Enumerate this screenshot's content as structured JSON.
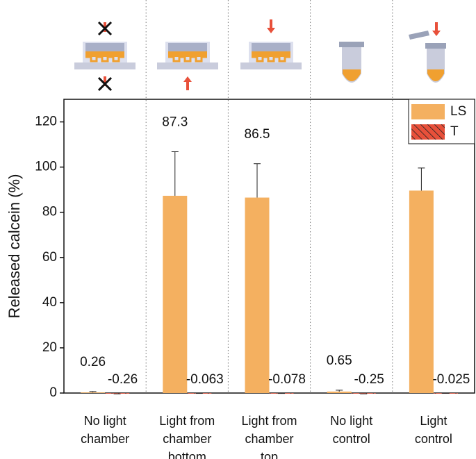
{
  "chart_data": {
    "type": "bar",
    "categories": [
      [
        "No light",
        "chamber"
      ],
      [
        "Light from",
        "chamber",
        "bottom"
      ],
      [
        "Light from",
        "chamber",
        "top"
      ],
      [
        "No light",
        "control"
      ],
      [
        "Light",
        "control"
      ]
    ],
    "series": [
      {
        "name": "LS",
        "color": "#f4b060",
        "values": [
          0.26,
          87.3,
          86.5,
          0.65,
          89.6
        ],
        "errors": [
          0.4,
          19.5,
          15,
          0.6,
          10
        ]
      },
      {
        "name": "T",
        "color": "#e8503a",
        "hatch": true,
        "values": [
          -0.26,
          -0.063,
          -0.078,
          -0.25,
          -0.025
        ],
        "errors": [
          0.1,
          0.1,
          0.1,
          0.1,
          0.1
        ]
      }
    ],
    "ylabel": "Released calcein (%)",
    "ylim": [
      0,
      130
    ],
    "yticks": [
      0,
      20,
      40,
      60,
      80,
      100,
      120
    ],
    "legend": "upper right"
  }
}
